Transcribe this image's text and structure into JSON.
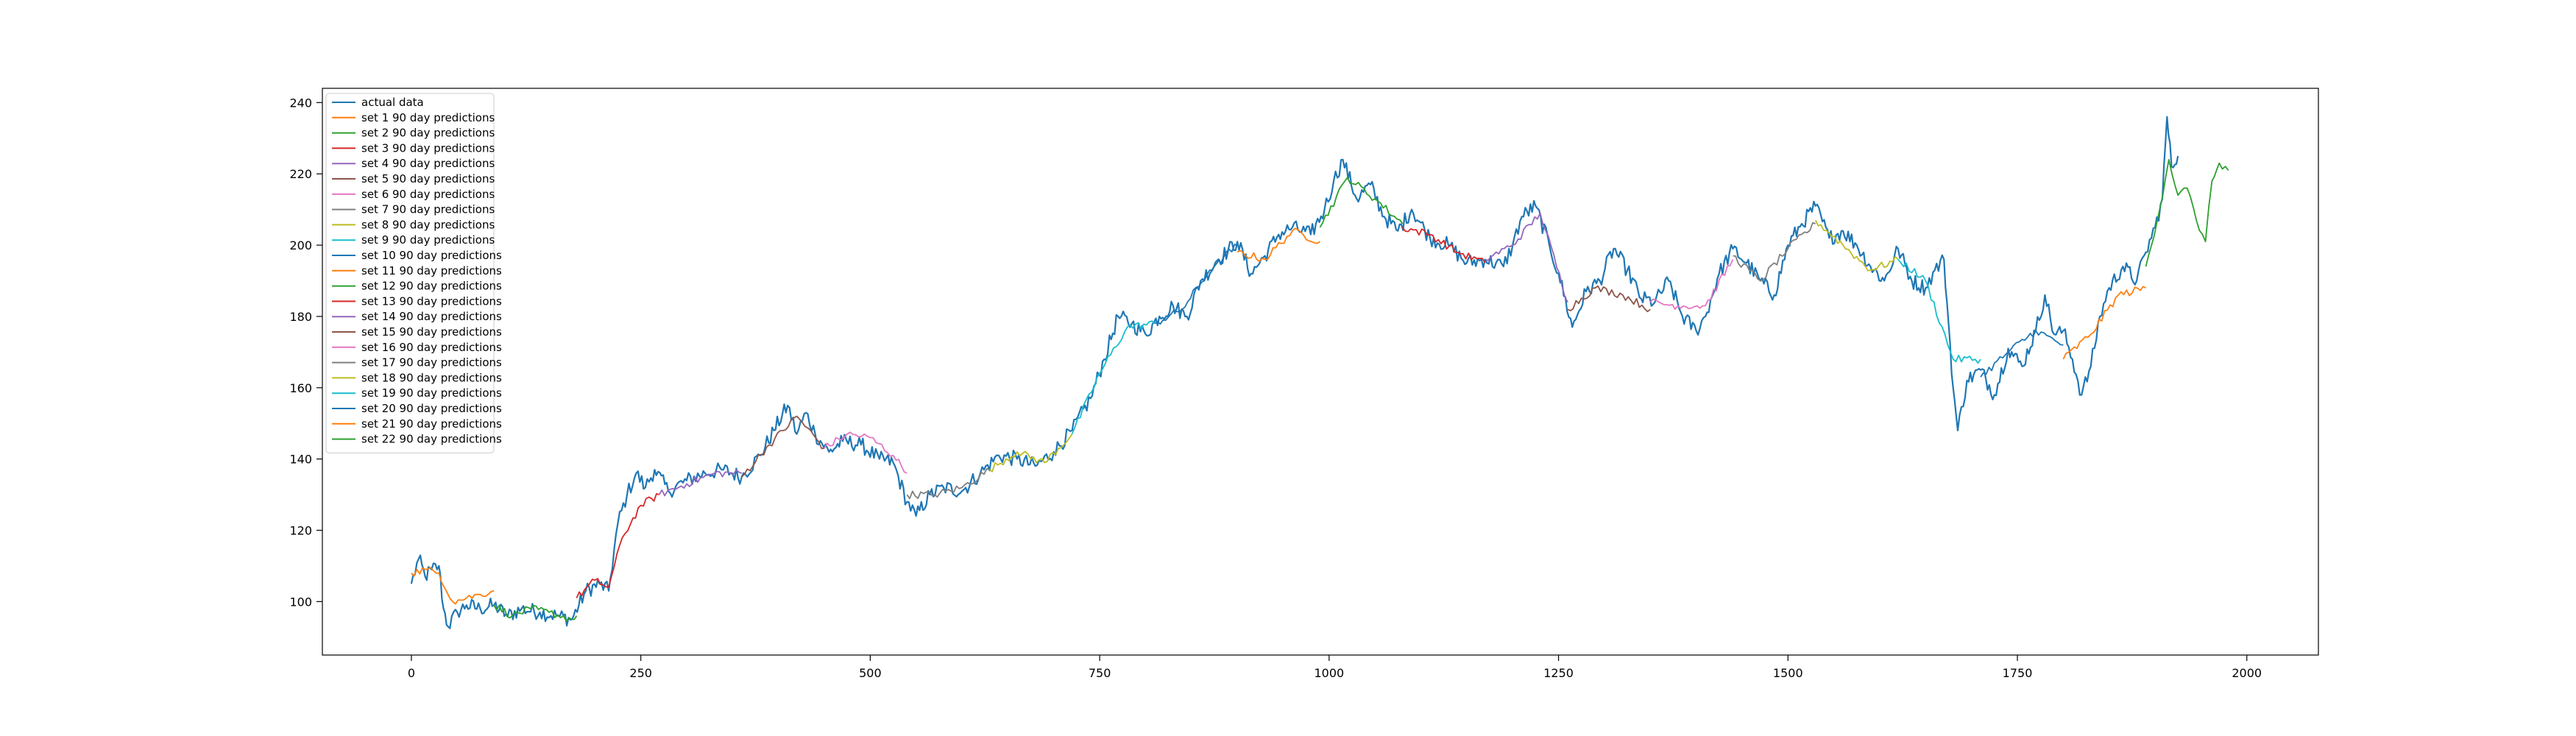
{
  "chart_data": {
    "type": "line",
    "title": "",
    "xlabel": "",
    "ylabel": "",
    "xlim": [
      -97,
      2078
    ],
    "ylim": [
      85,
      244
    ],
    "xticks": [
      0,
      250,
      500,
      750,
      1000,
      1250,
      1500,
      1750,
      2000
    ],
    "yticks": [
      100,
      120,
      140,
      160,
      180,
      200,
      220,
      240
    ],
    "grid": false,
    "legend_position": "top-left",
    "actual": {
      "name": "actual data",
      "color": "#1f77b4",
      "points": [
        [
          0,
          105
        ],
        [
          8,
          112
        ],
        [
          15,
          107
        ],
        [
          22,
          109
        ],
        [
          30,
          110
        ],
        [
          35,
          98
        ],
        [
          40,
          93
        ],
        [
          50,
          97
        ],
        [
          60,
          99
        ],
        [
          75,
          98
        ],
        [
          90,
          99
        ],
        [
          105,
          96
        ],
        [
          120,
          98
        ],
        [
          140,
          97
        ],
        [
          160,
          96
        ],
        [
          175,
          95
        ],
        [
          190,
          103
        ],
        [
          205,
          105
        ],
        [
          215,
          103
        ],
        [
          225,
          122
        ],
        [
          235,
          130
        ],
        [
          245,
          136
        ],
        [
          255,
          132
        ],
        [
          265,
          137
        ],
        [
          280,
          131
        ],
        [
          300,
          134
        ],
        [
          320,
          136
        ],
        [
          340,
          137
        ],
        [
          360,
          135
        ],
        [
          380,
          141
        ],
        [
          395,
          148
        ],
        [
          410,
          155
        ],
        [
          420,
          147
        ],
        [
          430,
          153
        ],
        [
          440,
          147
        ],
        [
          455,
          142
        ],
        [
          470,
          145
        ],
        [
          490,
          144
        ],
        [
          510,
          140
        ],
        [
          525,
          139
        ],
        [
          540,
          128
        ],
        [
          550,
          124
        ],
        [
          565,
          130
        ],
        [
          580,
          132
        ],
        [
          600,
          131
        ],
        [
          620,
          136
        ],
        [
          640,
          141
        ],
        [
          660,
          140
        ],
        [
          680,
          138
        ],
        [
          700,
          142
        ],
        [
          720,
          148
        ],
        [
          740,
          157
        ],
        [
          755,
          168
        ],
        [
          770,
          180
        ],
        [
          785,
          178
        ],
        [
          800,
          175
        ],
        [
          815,
          180
        ],
        [
          830,
          183
        ],
        [
          845,
          180
        ],
        [
          860,
          190
        ],
        [
          880,
          196
        ],
        [
          900,
          201
        ],
        [
          915,
          192
        ],
        [
          930,
          197
        ],
        [
          945,
          203
        ],
        [
          960,
          205
        ],
        [
          980,
          203
        ],
        [
          995,
          210
        ],
        [
          1005,
          218
        ],
        [
          1015,
          224
        ],
        [
          1030,
          213
        ],
        [
          1045,
          217
        ],
        [
          1060,
          208
        ],
        [
          1075,
          204
        ],
        [
          1090,
          210
        ],
        [
          1110,
          202
        ],
        [
          1130,
          200
        ],
        [
          1150,
          195
        ],
        [
          1170,
          196
        ],
        [
          1190,
          194
        ],
        [
          1200,
          200
        ],
        [
          1210,
          208
        ],
        [
          1225,
          211
        ],
        [
          1240,
          200
        ],
        [
          1250,
          192
        ],
        [
          1265,
          177
        ],
        [
          1280,
          187
        ],
        [
          1295,
          190
        ],
        [
          1310,
          199
        ],
        [
          1325,
          193
        ],
        [
          1340,
          185
        ],
        [
          1355,
          184
        ],
        [
          1370,
          190
        ],
        [
          1385,
          180
        ],
        [
          1400,
          176
        ],
        [
          1410,
          180
        ],
        [
          1425,
          192
        ],
        [
          1440,
          199
        ],
        [
          1455,
          195
        ],
        [
          1470,
          190
        ],
        [
          1485,
          186
        ],
        [
          1500,
          200
        ],
        [
          1515,
          206
        ],
        [
          1530,
          211
        ],
        [
          1545,
          202
        ],
        [
          1560,
          204
        ],
        [
          1575,
          200
        ],
        [
          1590,
          194
        ],
        [
          1605,
          190
        ],
        [
          1620,
          199
        ],
        [
          1635,
          190
        ],
        [
          1650,
          188
        ],
        [
          1660,
          193
        ],
        [
          1670,
          196
        ],
        [
          1675,
          178
        ],
        [
          1680,
          160
        ],
        [
          1685,
          148
        ],
        [
          1695,
          162
        ],
        [
          1710,
          165
        ],
        [
          1725,
          158
        ],
        [
          1740,
          171
        ],
        [
          1755,
          166
        ],
        [
          1770,
          176
        ],
        [
          1780,
          186
        ],
        [
          1790,
          175
        ],
        [
          1800,
          176
        ],
        [
          1810,
          168
        ],
        [
          1820,
          158
        ],
        [
          1830,
          166
        ],
        [
          1840,
          180
        ],
        [
          1850,
          188
        ],
        [
          1865,
          194
        ],
        [
          1880,
          190
        ],
        [
          1890,
          198
        ],
        [
          1900,
          205
        ],
        [
          1908,
          213
        ],
        [
          1913,
          236
        ],
        [
          1918,
          222
        ],
        [
          1925,
          225
        ]
      ]
    },
    "series": [
      {
        "name": "set 1 90 day predictions",
        "color": "#ff7f0e",
        "points": [
          [
            0,
            108
          ],
          [
            15,
            109
          ],
          [
            30,
            108
          ],
          [
            45,
            100
          ],
          [
            60,
            101
          ],
          [
            75,
            102
          ],
          [
            90,
            103
          ]
        ]
      },
      {
        "name": "set 2 90 day predictions",
        "color": "#2ca02c",
        "points": [
          [
            90,
            99
          ],
          [
            110,
            96
          ],
          [
            130,
            98
          ],
          [
            150,
            97
          ],
          [
            175,
            95
          ],
          [
            180,
            96
          ]
        ]
      },
      {
        "name": "set 3 90 day predictions",
        "color": "#d62728",
        "points": [
          [
            180,
            101
          ],
          [
            200,
            106
          ],
          [
            215,
            104
          ],
          [
            230,
            118
          ],
          [
            250,
            127
          ],
          [
            270,
            130
          ]
        ]
      },
      {
        "name": "set 4 90 day predictions",
        "color": "#9467bd",
        "points": [
          [
            270,
            130
          ],
          [
            300,
            133
          ],
          [
            330,
            136
          ],
          [
            360,
            136
          ]
        ]
      },
      {
        "name": "set 5 90 day predictions",
        "color": "#8c564b",
        "points": [
          [
            360,
            135
          ],
          [
            390,
            144
          ],
          [
            420,
            152
          ],
          [
            450,
            143
          ]
        ]
      },
      {
        "name": "set 6 90 day predictions",
        "color": "#e377c2",
        "points": [
          [
            450,
            143
          ],
          [
            475,
            147
          ],
          [
            500,
            146
          ],
          [
            525,
            141
          ],
          [
            540,
            136
          ]
        ]
      },
      {
        "name": "set 7 90 day predictions",
        "color": "#7f7f7f",
        "points": [
          [
            540,
            130
          ],
          [
            570,
            130
          ],
          [
            600,
            132
          ],
          [
            630,
            137
          ]
        ]
      },
      {
        "name": "set 8 90 day predictions",
        "color": "#bcbd22",
        "points": [
          [
            630,
            137
          ],
          [
            660,
            142
          ],
          [
            690,
            139
          ],
          [
            720,
            147
          ]
        ]
      },
      {
        "name": "set 9 90 day predictions",
        "color": "#17becf",
        "points": [
          [
            720,
            147
          ],
          [
            750,
            164
          ],
          [
            780,
            177
          ],
          [
            810,
            178
          ]
        ]
      },
      {
        "name": "set 10 90 day predictions",
        "color": "#1f77b4",
        "points": [
          [
            810,
            178
          ],
          [
            840,
            182
          ],
          [
            870,
            193
          ],
          [
            900,
            200
          ]
        ]
      },
      {
        "name": "set 11 90 day predictions",
        "color": "#ff7f0e",
        "points": [
          [
            900,
            198
          ],
          [
            930,
            196
          ],
          [
            960,
            204
          ],
          [
            990,
            201
          ]
        ]
      },
      {
        "name": "set 12 90 day predictions",
        "color": "#2ca02c",
        "points": [
          [
            990,
            205
          ],
          [
            1020,
            219
          ],
          [
            1050,
            213
          ],
          [
            1080,
            206
          ]
        ]
      },
      {
        "name": "set 13 90 day predictions",
        "color": "#d62728",
        "points": [
          [
            1080,
            205
          ],
          [
            1110,
            203
          ],
          [
            1140,
            198
          ],
          [
            1170,
            195
          ]
        ]
      },
      {
        "name": "set 14 90 day predictions",
        "color": "#9467bd",
        "points": [
          [
            1170,
            196
          ],
          [
            1200,
            200
          ],
          [
            1230,
            209
          ],
          [
            1260,
            184
          ]
        ]
      },
      {
        "name": "set 15 90 day predictions",
        "color": "#8c564b",
        "points": [
          [
            1260,
            182
          ],
          [
            1290,
            188
          ],
          [
            1320,
            186
          ],
          [
            1350,
            182
          ]
        ]
      },
      {
        "name": "set 16 90 day predictions",
        "color": "#e377c2",
        "points": [
          [
            1350,
            184
          ],
          [
            1380,
            183
          ],
          [
            1410,
            183
          ],
          [
            1440,
            196
          ]
        ]
      },
      {
        "name": "set 17 90 day predictions",
        "color": "#7f7f7f",
        "points": [
          [
            1440,
            197
          ],
          [
            1470,
            190
          ],
          [
            1500,
            199
          ],
          [
            1530,
            206
          ]
        ]
      },
      {
        "name": "set 18 90 day predictions",
        "color": "#bcbd22",
        "points": [
          [
            1530,
            207
          ],
          [
            1560,
            200
          ],
          [
            1590,
            193
          ],
          [
            1620,
            196
          ]
        ]
      },
      {
        "name": "set 19 90 day predictions",
        "color": "#17becf",
        "points": [
          [
            1620,
            196
          ],
          [
            1650,
            190
          ],
          [
            1680,
            168
          ],
          [
            1710,
            168
          ]
        ]
      },
      {
        "name": "set 20 90 day predictions",
        "color": "#1f77b4",
        "points": [
          [
            1710,
            163
          ],
          [
            1740,
            170
          ],
          [
            1770,
            176
          ],
          [
            1800,
            172
          ]
        ]
      },
      {
        "name": "set 21 90 day predictions",
        "color": "#ff7f0e",
        "points": [
          [
            1800,
            168
          ],
          [
            1830,
            175
          ],
          [
            1860,
            186
          ],
          [
            1890,
            188
          ]
        ]
      },
      {
        "name": "set 22 90 day predictions",
        "color": "#2ca02c",
        "points": [
          [
            1890,
            194
          ],
          [
            1905,
            210
          ],
          [
            1915,
            224
          ],
          [
            1925,
            214
          ],
          [
            1935,
            216
          ],
          [
            1945,
            207
          ],
          [
            1955,
            201
          ],
          [
            1962,
            218
          ],
          [
            1970,
            223
          ],
          [
            1980,
            221
          ]
        ]
      }
    ]
  }
}
